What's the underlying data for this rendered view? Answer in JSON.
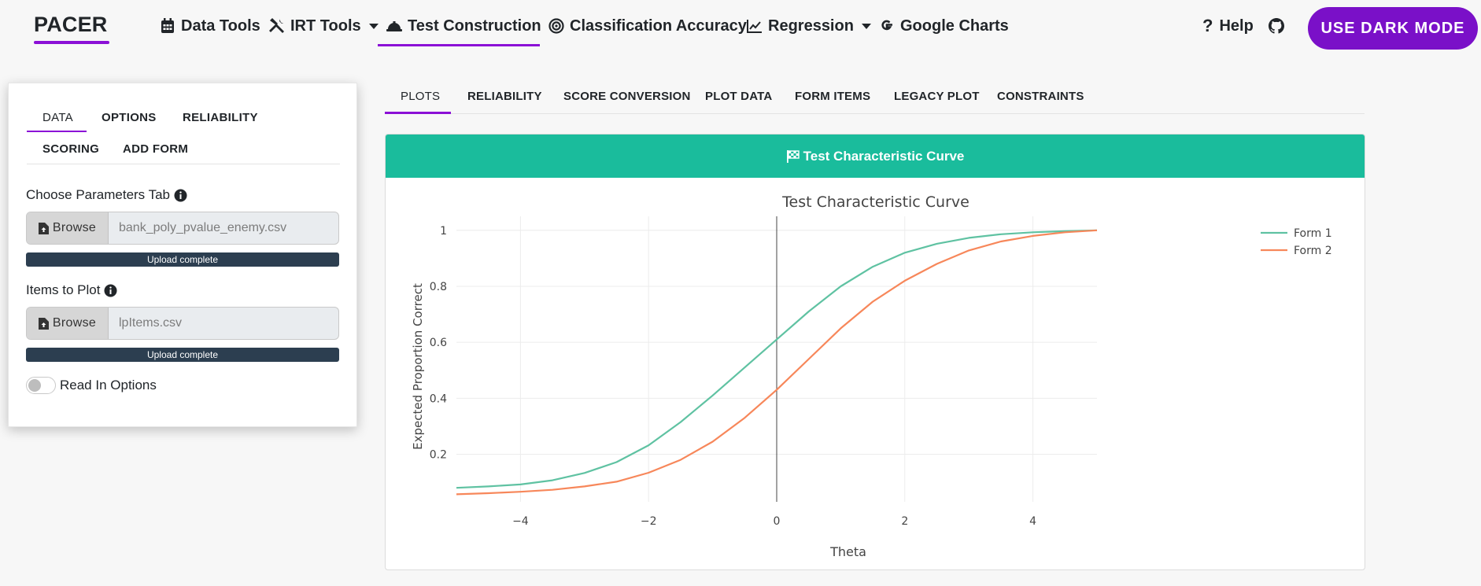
{
  "app": {
    "brand": "PACER"
  },
  "nav": {
    "items": [
      {
        "label": "Data Tools",
        "icon": "calendar-icon",
        "dropdown": false
      },
      {
        "label": "IRT Tools",
        "icon": "tools-icon",
        "dropdown": true
      },
      {
        "label": "Test Construction",
        "icon": "hard-hat-icon",
        "dropdown": false,
        "active": true
      },
      {
        "label": "Classification Accuracy",
        "icon": "bullseye-icon",
        "dropdown": false
      },
      {
        "label": "Regression",
        "icon": "line-chart-icon",
        "dropdown": true
      },
      {
        "label": "Google Charts",
        "icon": "google-icon",
        "dropdown": false
      }
    ],
    "help_label": "Help",
    "github_icon": "github-icon",
    "dark_mode_button": "USE DARK MODE"
  },
  "sidebar": {
    "tabs": [
      "DATA",
      "OPTIONS",
      "RELIABILITY",
      "SCORING",
      "ADD FORM"
    ],
    "active_tab": "DATA",
    "parameters": {
      "label": "Choose Parameters Tab",
      "browse_label": "Browse",
      "file_value": "bank_poly_pvalue_enemy.csv",
      "progress_label": "Upload complete"
    },
    "items_to_plot": {
      "label": "Items to Plot",
      "browse_label": "Browse",
      "file_value": "lpItems.csv",
      "progress_label": "Upload complete"
    },
    "read_in_options": {
      "label": "Read In Options",
      "checked": false
    }
  },
  "main": {
    "tabs": [
      "PLOTS",
      "RELIABILITY",
      "SCORE CONVERSION",
      "PLOT DATA",
      "FORM ITEMS",
      "LEGACY PLOT",
      "CONSTRAINTS"
    ],
    "active_tab": "PLOTS",
    "panel_title": "Test Characteristic Curve",
    "panel_icon": "checkered-flag-icon"
  },
  "colors": {
    "accent": "#8b10d6",
    "header": "#1abc9c",
    "form1": "#5fc2a2",
    "form2": "#f7875a"
  },
  "chart_data": {
    "type": "line",
    "title": "Test Characteristic Curve",
    "xlabel": "Theta",
    "ylabel": "Expected Proportion Correct",
    "xlim": [
      -5,
      5
    ],
    "ylim": [
      0.03,
      1.05
    ],
    "xticks": [
      -4,
      -2,
      0,
      2,
      4
    ],
    "xtick_labels": [
      "−4",
      "−2",
      "0",
      "2",
      "4"
    ],
    "yticks": [
      0.2,
      0.4,
      0.6,
      0.8,
      1
    ],
    "ytick_labels": [
      "0.2",
      "0.4",
      "0.6",
      "0.8",
      "1"
    ],
    "vertical_line_x": 0,
    "grid": true,
    "legend": "top-right",
    "x": [
      -5,
      -4.5,
      -4,
      -3.5,
      -3,
      -2.5,
      -2,
      -1.5,
      -1,
      -0.5,
      0,
      0.5,
      1,
      1.5,
      2,
      2.5,
      3,
      3.5,
      4,
      4.5,
      5
    ],
    "series": [
      {
        "name": "Form 1",
        "color": "#5fc2a2",
        "values": [
          0.08,
          0.085,
          0.092,
          0.107,
          0.133,
          0.172,
          0.232,
          0.315,
          0.41,
          0.51,
          0.61,
          0.71,
          0.8,
          0.87,
          0.92,
          0.952,
          0.973,
          0.986,
          0.993,
          0.997,
          1.0
        ]
      },
      {
        "name": "Form 2",
        "color": "#f7875a",
        "values": [
          0.057,
          0.061,
          0.066,
          0.073,
          0.085,
          0.102,
          0.134,
          0.18,
          0.245,
          0.33,
          0.43,
          0.54,
          0.65,
          0.745,
          0.82,
          0.88,
          0.928,
          0.96,
          0.98,
          0.993,
          1.0
        ]
      }
    ]
  }
}
